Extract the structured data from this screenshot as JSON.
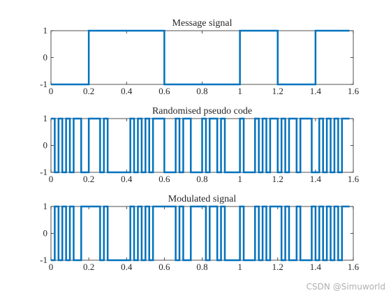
{
  "chart_data": [
    {
      "type": "line",
      "title": "Message signal",
      "xlim": [
        0,
        1.6
      ],
      "ylim": [
        -1,
        1
      ],
      "xticks": [
        "0",
        "0.2",
        "0.4",
        "0.6",
        "0.8",
        "1",
        "1.2",
        "1.4",
        "1.6"
      ],
      "yticks": [
        "-1",
        "0",
        "1"
      ],
      "series": [
        {
          "x": [
            0,
            0.2,
            0.2,
            0.6,
            0.6,
            1.0,
            1.0,
            1.2,
            1.2,
            1.4,
            1.4,
            1.58
          ],
          "y": [
            -1,
            -1,
            1,
            1,
            -1,
            -1,
            1,
            1,
            -1,
            -1,
            1,
            1
          ]
        }
      ]
    },
    {
      "type": "line",
      "title": "Randomised pseudo code",
      "xlim": [
        0,
        1.6
      ],
      "ylim": [
        -1,
        1
      ],
      "xticks": [
        "0",
        "0.2",
        "0.4",
        "0.6",
        "0.8",
        "1",
        "1.2",
        "1.4",
        "1.6"
      ],
      "yticks": [
        "-1",
        "0",
        "1"
      ],
      "series": [
        {
          "chip_width": 0.02,
          "chips": [
            1,
            -1,
            1,
            -1,
            1,
            -1,
            1,
            1,
            -1,
            -1,
            1,
            1,
            1,
            -1,
            1,
            -1,
            -1,
            -1,
            -1,
            -1,
            -1,
            1,
            -1,
            1,
            -1,
            1,
            -1,
            1,
            1,
            1,
            -1,
            -1,
            -1,
            1,
            -1,
            1,
            1,
            -1,
            -1,
            -1,
            1,
            -1,
            1,
            1,
            -1,
            1,
            -1,
            -1,
            -1,
            -1,
            1,
            -1,
            -1,
            -1,
            1,
            -1,
            1,
            -1,
            1,
            1,
            -1,
            1,
            -1,
            1,
            1,
            -1,
            1,
            1,
            1,
            -1,
            -1,
            1,
            -1,
            1,
            -1,
            1,
            -1,
            1,
            1
          ]
        }
      ]
    },
    {
      "type": "line",
      "title": "Modulated signal",
      "xlim": [
        0,
        1.6
      ],
      "ylim": [
        -1,
        1
      ],
      "xticks": [
        "0",
        "0.2",
        "0.4",
        "0.6",
        "0.8",
        "1",
        "1.2",
        "1.4",
        "1.6"
      ],
      "yticks": [
        "-1",
        "0",
        "1"
      ],
      "series": [
        {
          "chip_width": 0.02,
          "chips": [
            -1,
            1,
            -1,
            1,
            -1,
            1,
            -1,
            -1,
            1,
            1,
            1,
            1,
            1,
            -1,
            1,
            -1,
            -1,
            -1,
            -1,
            -1,
            -1,
            1,
            -1,
            1,
            -1,
            1,
            -1,
            1,
            1,
            1,
            1,
            1,
            1,
            -1,
            1,
            -1,
            -1,
            1,
            1,
            1,
            1,
            -1,
            1,
            1,
            -1,
            1,
            -1,
            -1,
            -1,
            -1,
            1,
            -1,
            -1,
            -1,
            1,
            -1,
            1,
            -1,
            1,
            1,
            1,
            -1,
            1,
            -1,
            -1,
            1,
            -1,
            -1,
            -1,
            1,
            -1,
            1,
            -1,
            1,
            -1,
            1,
            -1,
            1,
            1
          ]
        }
      ]
    }
  ],
  "colors": {
    "line": "#0072bd",
    "axis": "#262626"
  },
  "watermark": "CSDN @Simuworld"
}
